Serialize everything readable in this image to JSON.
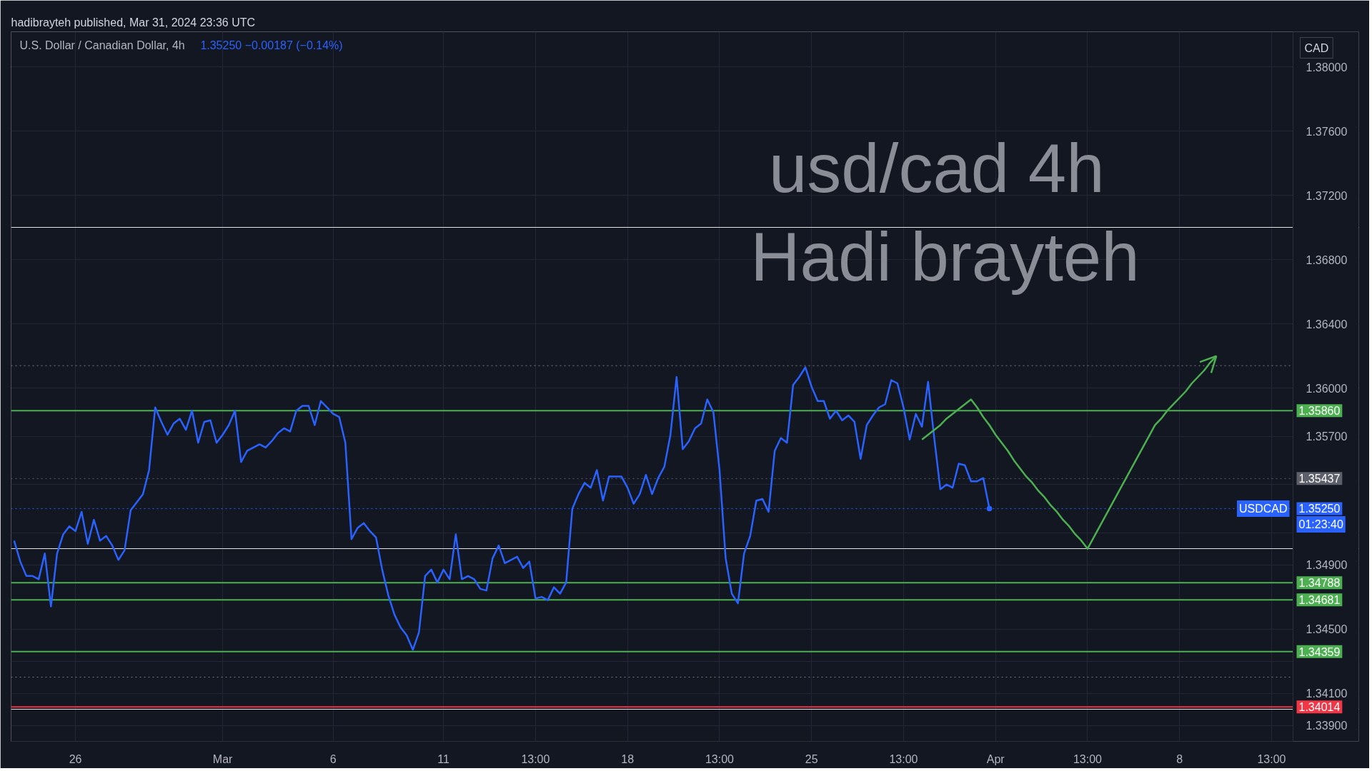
{
  "chart_data": {
    "type": "line",
    "title": "U.S. Dollar / Canadian Dollar, 4h",
    "subtitle": "1.35250 −0.00187 (−0.14%)",
    "ylabel": "CAD",
    "annotations": [
      "hadibrayteh published, Mar 31, 2024 23:36 UTC",
      "usd/cad 4h",
      "Hadi brayteh",
      "01:23:40"
    ],
    "categories": [
      null,
      null,
      null,
      null,
      null,
      null,
      null,
      null,
      null,
      null,
      "26",
      null,
      null,
      null,
      null,
      null,
      null,
      null,
      null,
      null,
      null,
      null,
      null,
      null,
      null,
      null,
      null,
      null,
      null,
      null,
      null,
      null,
      null,
      null,
      "Mar",
      null,
      null,
      null,
      null,
      null,
      null,
      null,
      null,
      null,
      null,
      null,
      null,
      null,
      null,
      null,
      null,
      null,
      "6",
      null,
      null,
      null,
      null,
      null,
      null,
      null,
      null,
      null,
      null,
      null,
      null,
      null,
      null,
      null,
      null,
      null,
      "11",
      null,
      null,
      null,
      null,
      null,
      null,
      null,
      null,
      null,
      null,
      null,
      null,
      null,
      null,
      "13:00",
      null,
      null,
      null,
      null,
      null,
      null,
      null,
      null,
      null,
      null,
      null,
      null,
      null,
      null,
      "18",
      null,
      null,
      null,
      null,
      null,
      null,
      null,
      null,
      null,
      null,
      null,
      null,
      null,
      null,
      "13:00",
      null,
      null,
      null,
      null,
      null,
      null,
      null,
      null,
      null,
      null,
      null,
      null,
      null,
      null,
      "25",
      null,
      null,
      null,
      null,
      null,
      null,
      null,
      null,
      null,
      null,
      null,
      null,
      null,
      null,
      "13:00",
      null,
      null,
      null,
      null,
      null,
      null,
      null,
      null,
      null,
      null,
      null,
      null,
      null,
      null,
      "Apr",
      null,
      null,
      null,
      null,
      null,
      null,
      null,
      null,
      null,
      null,
      null,
      null,
      null,
      null,
      "13:00",
      null,
      null,
      null,
      null,
      null,
      null,
      null,
      null,
      null,
      null,
      null,
      null,
      null,
      null,
      "8",
      null,
      null,
      null,
      null,
      null,
      null,
      null,
      null,
      null,
      null,
      null,
      null,
      null,
      null,
      "13:00",
      null,
      null,
      null
    ],
    "series": [
      {
        "name": "USDCAD",
        "color": "#2962ff",
        "values": [
          1.3505,
          1.3492,
          1.3483,
          1.3483,
          1.3481,
          1.3497,
          1.3464,
          1.3497,
          1.3509,
          1.3514,
          1.3511,
          1.3523,
          1.3503,
          1.3518,
          1.3505,
          1.3508,
          1.3502,
          1.3493,
          1.3499,
          1.3524,
          1.3529,
          1.3534,
          1.3549,
          1.3588,
          1.3579,
          1.3571,
          1.3578,
          1.3581,
          1.3574,
          1.3586,
          1.3566,
          1.3579,
          1.358,
          1.3566,
          1.3571,
          1.3577,
          1.3586,
          1.3554,
          1.3561,
          1.3563,
          1.3565,
          1.3563,
          1.3567,
          1.3572,
          1.3575,
          1.3573,
          1.3586,
          1.3589,
          1.3589,
          1.3577,
          1.3592,
          1.3588,
          1.3584,
          1.3582,
          1.3566,
          1.3506,
          1.3513,
          1.3516,
          1.3511,
          1.3507,
          1.3487,
          1.3471,
          1.3459,
          1.3451,
          1.3446,
          1.3437,
          1.3448,
          1.3483,
          1.3487,
          1.3479,
          1.3487,
          1.3481,
          1.3509,
          1.3481,
          1.3483,
          1.3481,
          1.3475,
          1.3474,
          1.3494,
          1.3502,
          1.3491,
          1.3493,
          1.3495,
          1.3488,
          1.3492,
          1.3469,
          1.347,
          1.3468,
          1.3476,
          1.3472,
          1.3479,
          1.3525,
          1.3534,
          1.3541,
          1.3538,
          1.3549,
          1.353,
          1.3545,
          1.3545,
          1.3545,
          1.3538,
          1.3528,
          1.3534,
          1.3546,
          1.3534,
          1.3544,
          1.3551,
          1.3571,
          1.3607,
          1.3562,
          1.3567,
          1.3575,
          1.3578,
          1.3593,
          1.3585,
          1.3549,
          1.3494,
          1.3472,
          1.3466,
          1.3497,
          1.3508,
          1.353,
          1.3531,
          1.3523,
          1.3561,
          1.3569,
          1.3566,
          1.3602,
          1.3607,
          1.3613,
          1.3601,
          1.3592,
          1.3592,
          1.3581,
          1.3586,
          1.358,
          1.3583,
          1.3579,
          1.3556,
          1.3577,
          1.3583,
          1.3588,
          1.359,
          1.3605,
          1.3603,
          1.3588,
          1.3568,
          1.3584,
          1.3576,
          1.3604,
          1.3569,
          1.3537,
          1.354,
          1.3538,
          1.3553,
          1.3552,
          1.3542,
          1.3542,
          1.3544,
          1.3525,
          null,
          null,
          null,
          null,
          null,
          null,
          null,
          null,
          null,
          null,
          null,
          null,
          null,
          null,
          null,
          null,
          null,
          null,
          null,
          null,
          null,
          null,
          null,
          null,
          null,
          null,
          null,
          null,
          null,
          null,
          null,
          null,
          null,
          null,
          null,
          null,
          null,
          null,
          null,
          null,
          null,
          null,
          null,
          null,
          null,
          null,
          null,
          null,
          null
        ]
      },
      {
        "color": "#4caf50",
        "values": [
          null,
          null,
          null,
          null,
          null,
          null,
          null,
          null,
          null,
          null,
          null,
          null,
          null,
          null,
          null,
          null,
          null,
          null,
          null,
          null,
          null,
          null,
          null,
          null,
          null,
          null,
          null,
          null,
          null,
          null,
          null,
          null,
          null,
          null,
          null,
          null,
          null,
          null,
          null,
          null,
          null,
          null,
          null,
          null,
          null,
          null,
          null,
          null,
          null,
          null,
          null,
          null,
          null,
          null,
          null,
          null,
          null,
          null,
          null,
          null,
          null,
          null,
          null,
          null,
          null,
          null,
          null,
          null,
          null,
          null,
          null,
          null,
          null,
          null,
          null,
          null,
          null,
          null,
          null,
          null,
          null,
          null,
          null,
          null,
          null,
          null,
          null,
          null,
          null,
          null,
          null,
          null,
          null,
          null,
          null,
          null,
          null,
          null,
          null,
          null,
          null,
          null,
          null,
          null,
          null,
          null,
          null,
          null,
          null,
          null,
          null,
          null,
          null,
          null,
          null,
          null,
          null,
          null,
          null,
          null,
          null,
          null,
          null,
          null,
          null,
          null,
          null,
          null,
          null,
          null,
          null,
          null,
          null,
          null,
          null,
          null,
          null,
          null,
          null,
          null,
          null,
          null,
          null,
          null,
          null,
          null,
          null,
          null,
          1.3568,
          1.3571,
          1.3574,
          1.3577,
          1.3581,
          1.3584,
          1.3587,
          1.359,
          1.3593,
          1.3588,
          1.3582,
          1.3577,
          1.3571,
          1.3566,
          1.3561,
          1.3555,
          1.355,
          1.3545,
          1.3541,
          1.3536,
          1.3532,
          1.3527,
          1.3523,
          1.3518,
          1.3514,
          1.3509,
          1.3505,
          1.35,
          1.3507,
          1.3514,
          1.3521,
          1.3528,
          1.3535,
          1.3542,
          1.3549,
          1.3556,
          1.3563,
          1.357,
          1.3577,
          1.3581,
          1.3586,
          1.359,
          1.3594,
          1.3598,
          1.3603,
          1.3607,
          1.3611,
          1.3616,
          1.362,
          null,
          null,
          null,
          null,
          null,
          null,
          null,
          null,
          null,
          null,
          null,
          null
        ]
      }
    ],
    "ylim": [
      1.338,
      1.3822
    ],
    "yticks": [
      {
        "value": 1.38,
        "label": "1.38000"
      },
      {
        "value": 1.376,
        "label": "1.37600"
      },
      {
        "value": 1.372,
        "label": "1.37200"
      },
      {
        "value": 1.368,
        "label": "1.36800"
      },
      {
        "value": 1.364,
        "label": "1.36400"
      },
      {
        "value": 1.36,
        "label": "1.36000"
      },
      {
        "value": 1.357,
        "label": "1.35700"
      },
      {
        "value": 1.354,
        "label": null
      },
      {
        "value": 1.351,
        "label": null
      },
      {
        "value": 1.349,
        "label": "1.34900"
      },
      {
        "value": 1.345,
        "label": "1.34500"
      },
      {
        "value": 1.343,
        "label": null
      },
      {
        "value": 1.341,
        "label": "1.34100"
      },
      {
        "value": 1.339,
        "label": "1.33900"
      }
    ],
    "ref_lines": [
      {
        "axis": "y",
        "value": 1.3586,
        "label": "1.35860",
        "color": "#4caf50"
      },
      {
        "axis": "y",
        "value": 1.34788,
        "label": "1.34788",
        "color": "#4caf50"
      },
      {
        "axis": "y",
        "value": 1.34681,
        "label": "1.34681",
        "color": "#4caf50"
      },
      {
        "axis": "y",
        "value": 1.34359,
        "label": "1.34359",
        "color": "#4caf50"
      },
      {
        "axis": "y",
        "value": 1.34014,
        "label": "1.34014",
        "color": "#f23645"
      },
      {
        "axis": "y",
        "value": 1.35437,
        "label": "1.35437",
        "color": "#5d606b",
        "line_style": "dotted"
      },
      {
        "axis": "y",
        "value": 1.3525,
        "label": "1.35250",
        "color": "#2962ff",
        "line_style": "dotted"
      },
      {
        "axis": "y",
        "value": 1.3614,
        "color": "#787b86",
        "line_style": "dotted"
      },
      {
        "axis": "y",
        "value": 1.342,
        "color": "#787b86",
        "line_style": "dotted"
      }
    ],
    "grid": true
  }
}
